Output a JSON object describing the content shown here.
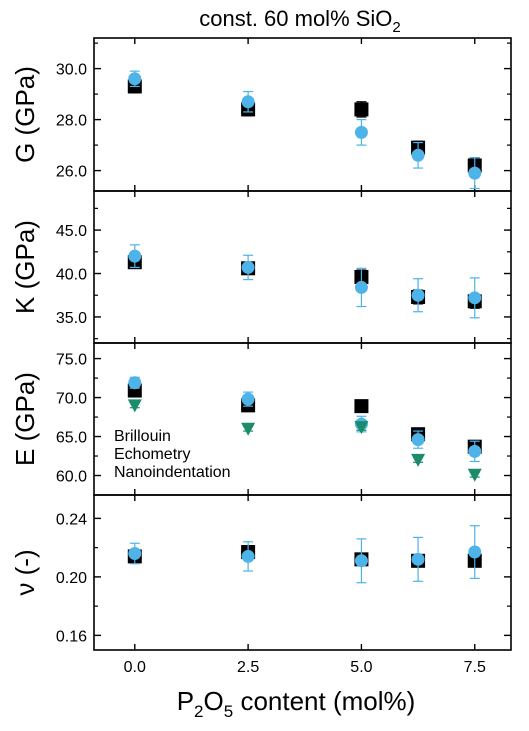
{
  "chart_data": {
    "type": "scatter",
    "title_main": "const. 60 mol% SiO",
    "title_sub": "2",
    "xlabel": {
      "p1": "P",
      "s1": "2",
      "p2": "O",
      "s2": "5",
      "p3": " content (mol%)"
    },
    "x_ticks": [
      "0.0",
      "2.5",
      "5.0",
      "7.5"
    ],
    "xlim": [
      -0.9,
      8.3
    ],
    "legend": {
      "position": "mid-left of E panel",
      "entries": [
        {
          "label": "Brillouin",
          "color": "#000000"
        },
        {
          "label": "Echometry",
          "color": "#4eb3e8"
        },
        {
          "label": "Nanoindentation",
          "color": "#1a8c6a"
        }
      ]
    },
    "panels": [
      {
        "id": "G",
        "ylabel": "G (GPa)",
        "ylim": [
          25.2,
          31.2
        ],
        "yticks": [
          26.0,
          28.0,
          30.0
        ],
        "ytick_labels": [
          "26.0",
          "28.0",
          "30.0"
        ],
        "series": [
          {
            "name": "Brillouin",
            "marker": "square",
            "color": "#000000",
            "points": [
              {
                "x": 0,
                "y": 29.3,
                "err": 0.25
              },
              {
                "x": 2.5,
                "y": 28.4,
                "err": 0.25
              },
              {
                "x": 5,
                "y": 28.4,
                "err": 0.3
              },
              {
                "x": 6.25,
                "y": 26.9,
                "err": 0.25
              },
              {
                "x": 7.5,
                "y": 26.2,
                "err": 0.3
              }
            ]
          },
          {
            "name": "Echometry",
            "marker": "circle",
            "color": "#4eb3e8",
            "points": [
              {
                "x": 0,
                "y": 29.6,
                "err": 0.3
              },
              {
                "x": 2.5,
                "y": 28.7,
                "err": 0.4
              },
              {
                "x": 5,
                "y": 27.5,
                "err": 0.5
              },
              {
                "x": 6.25,
                "y": 26.6,
                "err": 0.5
              },
              {
                "x": 7.5,
                "y": 25.9,
                "err": 0.6
              }
            ]
          }
        ]
      },
      {
        "id": "K",
        "ylabel": "K (GPa)",
        "ylim": [
          32.0,
          49.5
        ],
        "yticks": [
          35.0,
          40.0,
          45.0
        ],
        "ytick_labels": [
          "35.0",
          "40.0",
          "45.0"
        ],
        "series": [
          {
            "name": "Brillouin",
            "marker": "square",
            "color": "#000000",
            "points": [
              {
                "x": 0,
                "y": 41.3,
                "err": 0.7
              },
              {
                "x": 2.5,
                "y": 40.6,
                "err": 0.6
              },
              {
                "x": 5,
                "y": 39.6,
                "err": 0.8
              },
              {
                "x": 6.25,
                "y": 37.3,
                "err": 0.8
              },
              {
                "x": 7.5,
                "y": 36.8,
                "err": 0.8
              }
            ]
          },
          {
            "name": "Echometry",
            "marker": "circle",
            "color": "#4eb3e8",
            "points": [
              {
                "x": 0,
                "y": 42.0,
                "err": 1.3
              },
              {
                "x": 2.5,
                "y": 40.7,
                "err": 1.4
              },
              {
                "x": 5,
                "y": 38.4,
                "err": 2.2
              },
              {
                "x": 6.25,
                "y": 37.5,
                "err": 1.9
              },
              {
                "x": 7.5,
                "y": 37.2,
                "err": 2.3
              }
            ]
          }
        ]
      },
      {
        "id": "E",
        "ylabel": "E (GPa)",
        "ylim": [
          57.5,
          77.0
        ],
        "yticks": [
          60.0,
          65.0,
          70.0,
          75.0
        ],
        "ytick_labels": [
          "60.0",
          "65.0",
          "70.0",
          "75.0"
        ],
        "series": [
          {
            "name": "Brillouin",
            "marker": "square",
            "color": "#000000",
            "points": [
              {
                "x": 0,
                "y": 70.9,
                "err": 0.5
              },
              {
                "x": 2.5,
                "y": 69.0,
                "err": 0.5
              },
              {
                "x": 5,
                "y": 68.9,
                "err": 0.6
              },
              {
                "x": 6.25,
                "y": 65.3,
                "err": 0.6
              },
              {
                "x": 7.5,
                "y": 63.7,
                "err": 0.6
              }
            ]
          },
          {
            "name": "Echometry",
            "marker": "circle",
            "color": "#4eb3e8",
            "points": [
              {
                "x": 0,
                "y": 71.9,
                "err": 0.7
              },
              {
                "x": 2.5,
                "y": 69.8,
                "err": 0.9
              },
              {
                "x": 5,
                "y": 66.6,
                "err": 1.0
              },
              {
                "x": 6.25,
                "y": 64.6,
                "err": 1.1
              },
              {
                "x": 7.5,
                "y": 63.1,
                "err": 1.3
              }
            ]
          },
          {
            "name": "Nanoindentation",
            "marker": "triangle-down",
            "color": "#1a8c6a",
            "points": [
              {
                "x": 0,
                "y": 69.0,
                "err": 0.3
              },
              {
                "x": 2.5,
                "y": 66.0,
                "err": 0.3
              },
              {
                "x": 5,
                "y": 66.2,
                "err": 0.4
              },
              {
                "x": 6.25,
                "y": 62.0,
                "err": 0.3
              },
              {
                "x": 7.5,
                "y": 60.1,
                "err": 0.3
              }
            ]
          }
        ]
      },
      {
        "id": "nu",
        "ylabel": "ν (-)",
        "ylim": [
          0.15,
          0.256
        ],
        "yticks": [
          0.16,
          0.2,
          0.24
        ],
        "ytick_labels": [
          "0.16",
          "0.20",
          "0.24"
        ],
        "series": [
          {
            "name": "Brillouin",
            "marker": "square",
            "color": "#000000",
            "points": [
              {
                "x": 0,
                "y": 0.214,
                "err": 0.004
              },
              {
                "x": 2.5,
                "y": 0.217,
                "err": 0.004
              },
              {
                "x": 5,
                "y": 0.212,
                "err": 0.004
              },
              {
                "x": 6.25,
                "y": 0.211,
                "err": 0.004
              },
              {
                "x": 7.5,
                "y": 0.211,
                "err": 0.004
              }
            ]
          },
          {
            "name": "Echometry",
            "marker": "circle",
            "color": "#4eb3e8",
            "points": [
              {
                "x": 0,
                "y": 0.216,
                "err": 0.007
              },
              {
                "x": 2.5,
                "y": 0.214,
                "err": 0.01
              },
              {
                "x": 5,
                "y": 0.211,
                "err": 0.015
              },
              {
                "x": 6.25,
                "y": 0.212,
                "err": 0.015
              },
              {
                "x": 7.5,
                "y": 0.217,
                "err": 0.018
              }
            ]
          }
        ]
      }
    ]
  }
}
